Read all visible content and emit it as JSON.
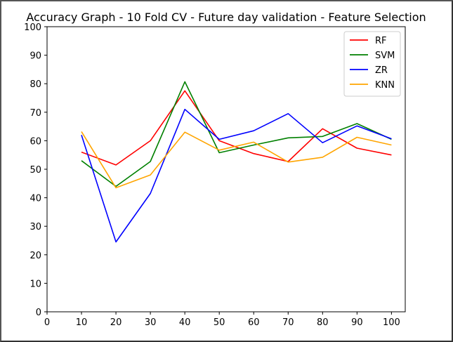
{
  "chart_data": {
    "type": "line",
    "title": "Accuracy Graph - 10 Fold CV - Future day validation - Feature Selection",
    "xlabel": "",
    "ylabel": "",
    "xlim": [
      0,
      104
    ],
    "ylim": [
      0,
      100
    ],
    "xticks": [
      "0",
      "10",
      "20",
      "30",
      "40",
      "50",
      "60",
      "70",
      "80",
      "90",
      "100"
    ],
    "yticks": [
      "0",
      "10",
      "20",
      "30",
      "40",
      "50",
      "60",
      "70",
      "80",
      "90",
      "100"
    ],
    "x": [
      10,
      20,
      30,
      40,
      50,
      60,
      70,
      80,
      90,
      100
    ],
    "grid": false,
    "legend_position": "top-right",
    "series": [
      {
        "name": "RF",
        "color": "#ff0000",
        "values": [
          56,
          51.5,
          60,
          77.5,
          60,
          55.5,
          52.7,
          64.2,
          57.4,
          55
        ]
      },
      {
        "name": "SVM",
        "color": "#008000",
        "values": [
          53,
          44,
          52.7,
          80.7,
          55.8,
          58.5,
          61,
          61.5,
          66,
          60.5
        ]
      },
      {
        "name": "ZR",
        "color": "#0000ff",
        "values": [
          62,
          24.5,
          41.5,
          71,
          60.5,
          63.5,
          69.5,
          59.3,
          65.2,
          60.7
        ]
      },
      {
        "name": "KNN",
        "color": "#ffa500",
        "values": [
          63.2,
          43.5,
          48,
          63,
          56.7,
          59.5,
          52.5,
          54.2,
          61.2,
          58.5
        ]
      }
    ]
  }
}
